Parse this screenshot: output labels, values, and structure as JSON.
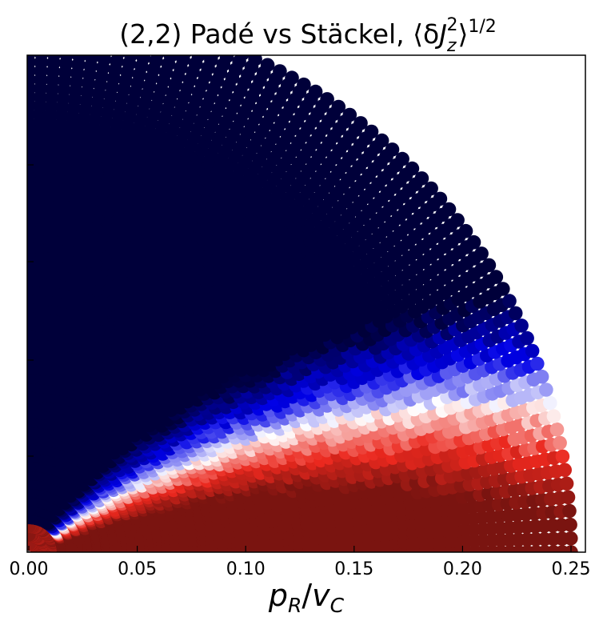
{
  "chart_data": {
    "type": "scatter",
    "title": {
      "prefix": "(2,2) Padé vs Stäckel, ⟨δ",
      "var": "J",
      "sub": "z",
      "sup": "2",
      "close": "⟩",
      "exp": "1/2"
    },
    "xlabel": {
      "var1": "p",
      "sub1": "R",
      "slash": "/",
      "var2": "v",
      "sub2": "C"
    },
    "xlim": [
      0,
      0.25
    ],
    "x_ticks": [
      "0.00",
      "0.05",
      "0.10",
      "0.15",
      "0.20",
      "0.25"
    ],
    "y_ticks_shown": false,
    "grid": false,
    "colormap": "seismic",
    "color_scale": {
      "low": "#00003a",
      "mid": "#ffffff",
      "high": "#7a1410"
    },
    "points": {
      "layout": "quarter-disc of concentric arcs in the (p_R, p_z) plane",
      "max_radius": 0.25,
      "trend": "red (large deviation) near p_z≈0 and at small radius; blue to dark navy (small deviation) at larger p_z"
    }
  }
}
